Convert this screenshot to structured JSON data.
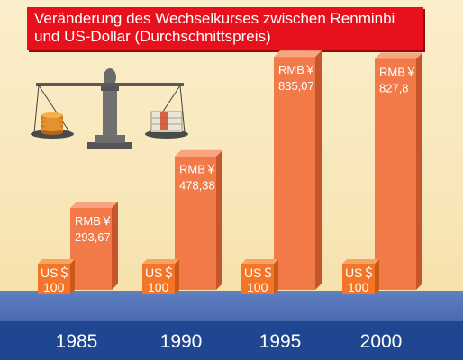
{
  "chart_data": {
    "type": "bar",
    "title_line1": "Veränderung des Wechselkurses zwischen Renminbi",
    "title_line2": "und  US-Dollar (Durchschnittspreis)",
    "categories": [
      "1985",
      "1990",
      "1995",
      "2000"
    ],
    "values": [
      293.67,
      478.38,
      835.07,
      827.8
    ],
    "value_labels": [
      "293,67",
      "478,38",
      "835,07",
      "827,8"
    ],
    "currency_label": "RMB￥",
    "base_label_line1": "US＄",
    "base_label_line2": "100",
    "colors": {
      "bar_front": "#f27a48",
      "bar_side": "#c7552b",
      "bar_top": "#f9a680",
      "base_front": "#f47528",
      "title_bg": "#e8101c",
      "floor": "#5677bb",
      "axis_band": "#1f4690"
    }
  },
  "icons": {
    "balance": "balance-scale-icon",
    "coins": "coin-stack-icon",
    "banknotes": "banknote-stack-icon"
  }
}
